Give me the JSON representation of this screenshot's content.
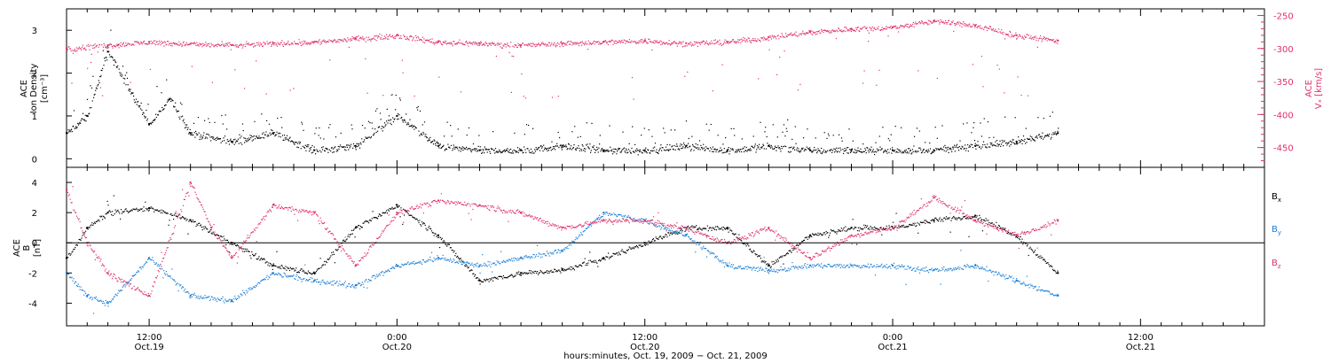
{
  "colors": {
    "black": "#000000",
    "pink": "#e0306a",
    "blue": "#1a7fd6",
    "axis": "#000000"
  },
  "chart_data": [
    {
      "type": "scatter",
      "title": "",
      "ylabel_lines": [
        "ACE",
        "Ion Density",
        "[cm⁻³]"
      ],
      "y2label_lines": [
        "ACE",
        "Vₓ [km/s]"
      ],
      "left_ylim": [
        -0.2,
        3.5
      ],
      "left_ticks": [
        0,
        1,
        2,
        3
      ],
      "right_ylim": [
        -480,
        -240
      ],
      "right_ticks": [
        -250,
        -300,
        -350,
        -400,
        -450
      ],
      "grid": false,
      "series": [
        {
          "color": "black",
          "axis": "left",
          "x": [
            "2009-10-19T08:00",
            "2009-10-19T09:00",
            "2009-10-19T10:00",
            "2009-10-19T12:00",
            "2009-10-19T13:00",
            "2009-10-19T14:00",
            "2009-10-19T16:00",
            "2009-10-19T18:00",
            "2009-10-19T20:00",
            "2009-10-19T22:00",
            "2009-10-20T00:00",
            "2009-10-20T02:00",
            "2009-10-20T04:00",
            "2009-10-20T06:00",
            "2009-10-20T08:00",
            "2009-10-20T10:00",
            "2009-10-20T12:00",
            "2009-10-20T14:00",
            "2009-10-20T16:00",
            "2009-10-20T18:00",
            "2009-10-20T20:00",
            "2009-10-20T22:00",
            "2009-10-21T00:00",
            "2009-10-21T02:00",
            "2009-10-21T04:00",
            "2009-10-21T06:00",
            "2009-10-21T08:00"
          ],
          "y": [
            0.6,
            1.0,
            2.5,
            0.8,
            1.4,
            0.6,
            0.4,
            0.6,
            0.2,
            0.3,
            1.0,
            0.3,
            0.2,
            0.2,
            0.3,
            0.2,
            0.2,
            0.3,
            0.2,
            0.3,
            0.2,
            0.2,
            0.2,
            0.2,
            0.3,
            0.4,
            0.6
          ]
        },
        {
          "color": "pink",
          "axis": "right",
          "x": [
            "2009-10-19T08:00",
            "2009-10-19T10:00",
            "2009-10-19T12:00",
            "2009-10-19T14:00",
            "2009-10-19T16:00",
            "2009-10-19T18:00",
            "2009-10-19T20:00",
            "2009-10-19T22:00",
            "2009-10-20T00:00",
            "2009-10-20T02:00",
            "2009-10-20T04:00",
            "2009-10-20T06:00",
            "2009-10-20T08:00",
            "2009-10-20T10:00",
            "2009-10-20T12:00",
            "2009-10-20T14:00",
            "2009-10-20T16:00",
            "2009-10-20T18:00",
            "2009-10-20T20:00",
            "2009-10-20T22:00",
            "2009-10-21T00:00",
            "2009-10-21T02:00",
            "2009-10-21T04:00",
            "2009-10-21T06:00",
            "2009-10-21T08:00"
          ],
          "y": [
            -300,
            -295,
            -290,
            -293,
            -295,
            -292,
            -290,
            -285,
            -280,
            -290,
            -292,
            -295,
            -292,
            -290,
            -288,
            -292,
            -290,
            -283,
            -275,
            -270,
            -268,
            -258,
            -265,
            -280,
            -288
          ]
        }
      ]
    },
    {
      "type": "scatter",
      "title": "",
      "ylabel_lines": [
        "ACE",
        "B",
        "[nT]"
      ],
      "ylim": [
        -5.5,
        5
      ],
      "yticks": [
        -4,
        -2,
        0,
        2,
        4
      ],
      "grid": false,
      "zero_line": true,
      "series": [
        {
          "name": "Bx",
          "color": "black",
          "x": [
            "2009-10-19T08:00",
            "2009-10-19T09:00",
            "2009-10-19T10:00",
            "2009-10-19T12:00",
            "2009-10-19T14:00",
            "2009-10-19T16:00",
            "2009-10-19T18:00",
            "2009-10-19T20:00",
            "2009-10-19T22:00",
            "2009-10-20T00:00",
            "2009-10-20T02:00",
            "2009-10-20T04:00",
            "2009-10-20T06:00",
            "2009-10-20T08:00",
            "2009-10-20T10:00",
            "2009-10-20T12:00",
            "2009-10-20T14:00",
            "2009-10-20T16:00",
            "2009-10-20T18:00",
            "2009-10-20T20:00",
            "2009-10-20T22:00",
            "2009-10-21T00:00",
            "2009-10-21T02:00",
            "2009-10-21T04:00",
            "2009-10-21T06:00",
            "2009-10-21T08:00"
          ],
          "y": [
            -1.0,
            1.0,
            2.0,
            2.3,
            1.5,
            0.0,
            -1.5,
            -2.0,
            1.0,
            2.5,
            0.5,
            -2.5,
            -2.0,
            -1.8,
            -1.0,
            0.0,
            1.0,
            1.0,
            -1.5,
            0.5,
            1.0,
            1.0,
            1.5,
            1.8,
            0.5,
            -2.0
          ]
        },
        {
          "name": "By",
          "color": "blue",
          "x": [
            "2009-10-19T08:00",
            "2009-10-19T09:00",
            "2009-10-19T10:00",
            "2009-10-19T12:00",
            "2009-10-19T14:00",
            "2009-10-19T16:00",
            "2009-10-19T18:00",
            "2009-10-19T20:00",
            "2009-10-19T22:00",
            "2009-10-20T00:00",
            "2009-10-20T02:00",
            "2009-10-20T04:00",
            "2009-10-20T06:00",
            "2009-10-20T08:00",
            "2009-10-20T10:00",
            "2009-10-20T12:00",
            "2009-10-20T14:00",
            "2009-10-20T16:00",
            "2009-10-20T18:00",
            "2009-10-20T20:00",
            "2009-10-20T22:00",
            "2009-10-21T00:00",
            "2009-10-21T02:00",
            "2009-10-21T04:00",
            "2009-10-21T06:00",
            "2009-10-21T08:00"
          ],
          "y": [
            -2.0,
            -3.5,
            -4.0,
            -1.0,
            -3.5,
            -3.8,
            -2.0,
            -2.5,
            -2.8,
            -1.5,
            -1.0,
            -1.5,
            -1.0,
            -0.5,
            2.0,
            1.5,
            0.5,
            -1.5,
            -1.8,
            -1.5,
            -1.5,
            -1.5,
            -1.8,
            -1.5,
            -2.5,
            -3.5
          ]
        },
        {
          "name": "Bz",
          "color": "pink",
          "x": [
            "2009-10-19T08:00",
            "2009-10-19T09:00",
            "2009-10-19T10:00",
            "2009-10-19T12:00",
            "2009-10-19T14:00",
            "2009-10-19T15:00",
            "2009-10-19T16:00",
            "2009-10-19T18:00",
            "2009-10-19T20:00",
            "2009-10-19T22:00",
            "2009-10-20T00:00",
            "2009-10-20T02:00",
            "2009-10-20T04:00",
            "2009-10-20T06:00",
            "2009-10-20T08:00",
            "2009-10-20T10:00",
            "2009-10-20T12:00",
            "2009-10-20T14:00",
            "2009-10-20T16:00",
            "2009-10-20T18:00",
            "2009-10-20T20:00",
            "2009-10-20T22:00",
            "2009-10-21T00:00",
            "2009-10-21T02:00",
            "2009-10-21T04:00",
            "2009-10-21T06:00",
            "2009-10-21T08:00"
          ],
          "y": [
            3.5,
            0.0,
            -2.0,
            -3.5,
            4.0,
            1.0,
            -1.0,
            2.5,
            2.0,
            -1.5,
            2.0,
            2.8,
            2.5,
            2.0,
            1.0,
            1.5,
            1.5,
            1.0,
            0.0,
            1.0,
            -1.0,
            0.5,
            1.0,
            3.0,
            1.5,
            0.5,
            1.5
          ]
        }
      ],
      "legend": [
        "Bx",
        "By",
        "Bz"
      ]
    }
  ],
  "xaxis": {
    "start": "2009-10-19T08:00",
    "end": "2009-10-21T18:00",
    "tick_labels": [
      {
        "time": "12:00",
        "date": "Oct.19",
        "at": "2009-10-19T12:00"
      },
      {
        "time": "0:00",
        "date": "Oct.20",
        "at": "2009-10-20T00:00"
      },
      {
        "time": "12:00",
        "date": "Oct.20",
        "at": "2009-10-20T12:00"
      },
      {
        "time": "0:00",
        "date": "Oct.21",
        "at": "2009-10-21T00:00"
      },
      {
        "time": "12:00",
        "date": "Oct.21",
        "at": "2009-10-21T12:00"
      }
    ],
    "label": "hours:minutes, Oct. 19, 2009 − Oct. 21, 2009"
  },
  "legend": {
    "bx": "B",
    "bx_sub": "x",
    "by": "B",
    "by_sub": "y",
    "bz": "B",
    "bz_sub": "z"
  }
}
